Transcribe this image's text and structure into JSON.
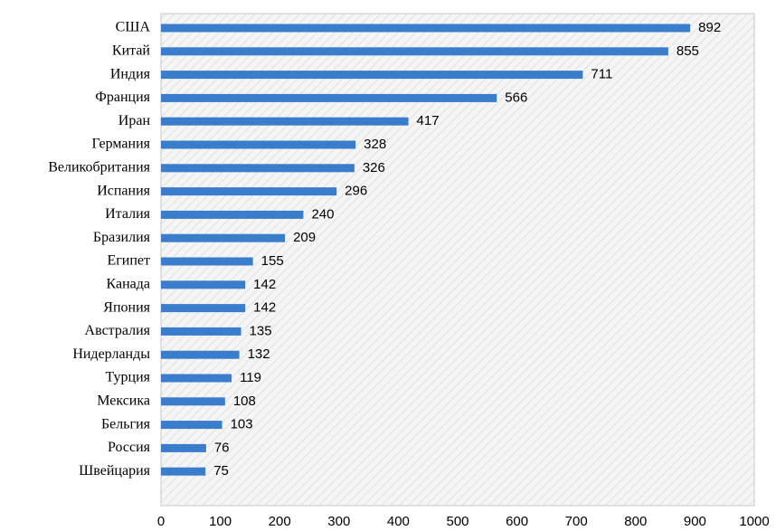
{
  "chart_data": {
    "type": "bar",
    "orientation": "horizontal",
    "categories": [
      "США",
      "Китай",
      "Индия",
      "Франция",
      "Иран",
      "Германия",
      "Великобритания",
      "Испания",
      "Италия",
      "Бразилия",
      "Египет",
      "Канада",
      "Япония",
      "Австралия",
      "Нидерланды",
      "Турция",
      "Мексика",
      "Бельгия",
      "Россия",
      "Швейцария"
    ],
    "values": [
      892,
      855,
      711,
      566,
      417,
      328,
      326,
      296,
      240,
      209,
      155,
      142,
      142,
      135,
      132,
      119,
      108,
      103,
      76,
      75
    ],
    "xticks": [
      0,
      100,
      200,
      300,
      400,
      500,
      600,
      700,
      800,
      900,
      1000
    ],
    "xlim": [
      0,
      1000
    ],
    "title": "",
    "xlabel": "",
    "ylabel": "",
    "grid": false,
    "legend": "none",
    "colors": {
      "bar": "#3a7dcc",
      "plot_background": "#f5f5f5",
      "hatch": "#d8d8d8",
      "frame": "#c8c8c8"
    }
  }
}
